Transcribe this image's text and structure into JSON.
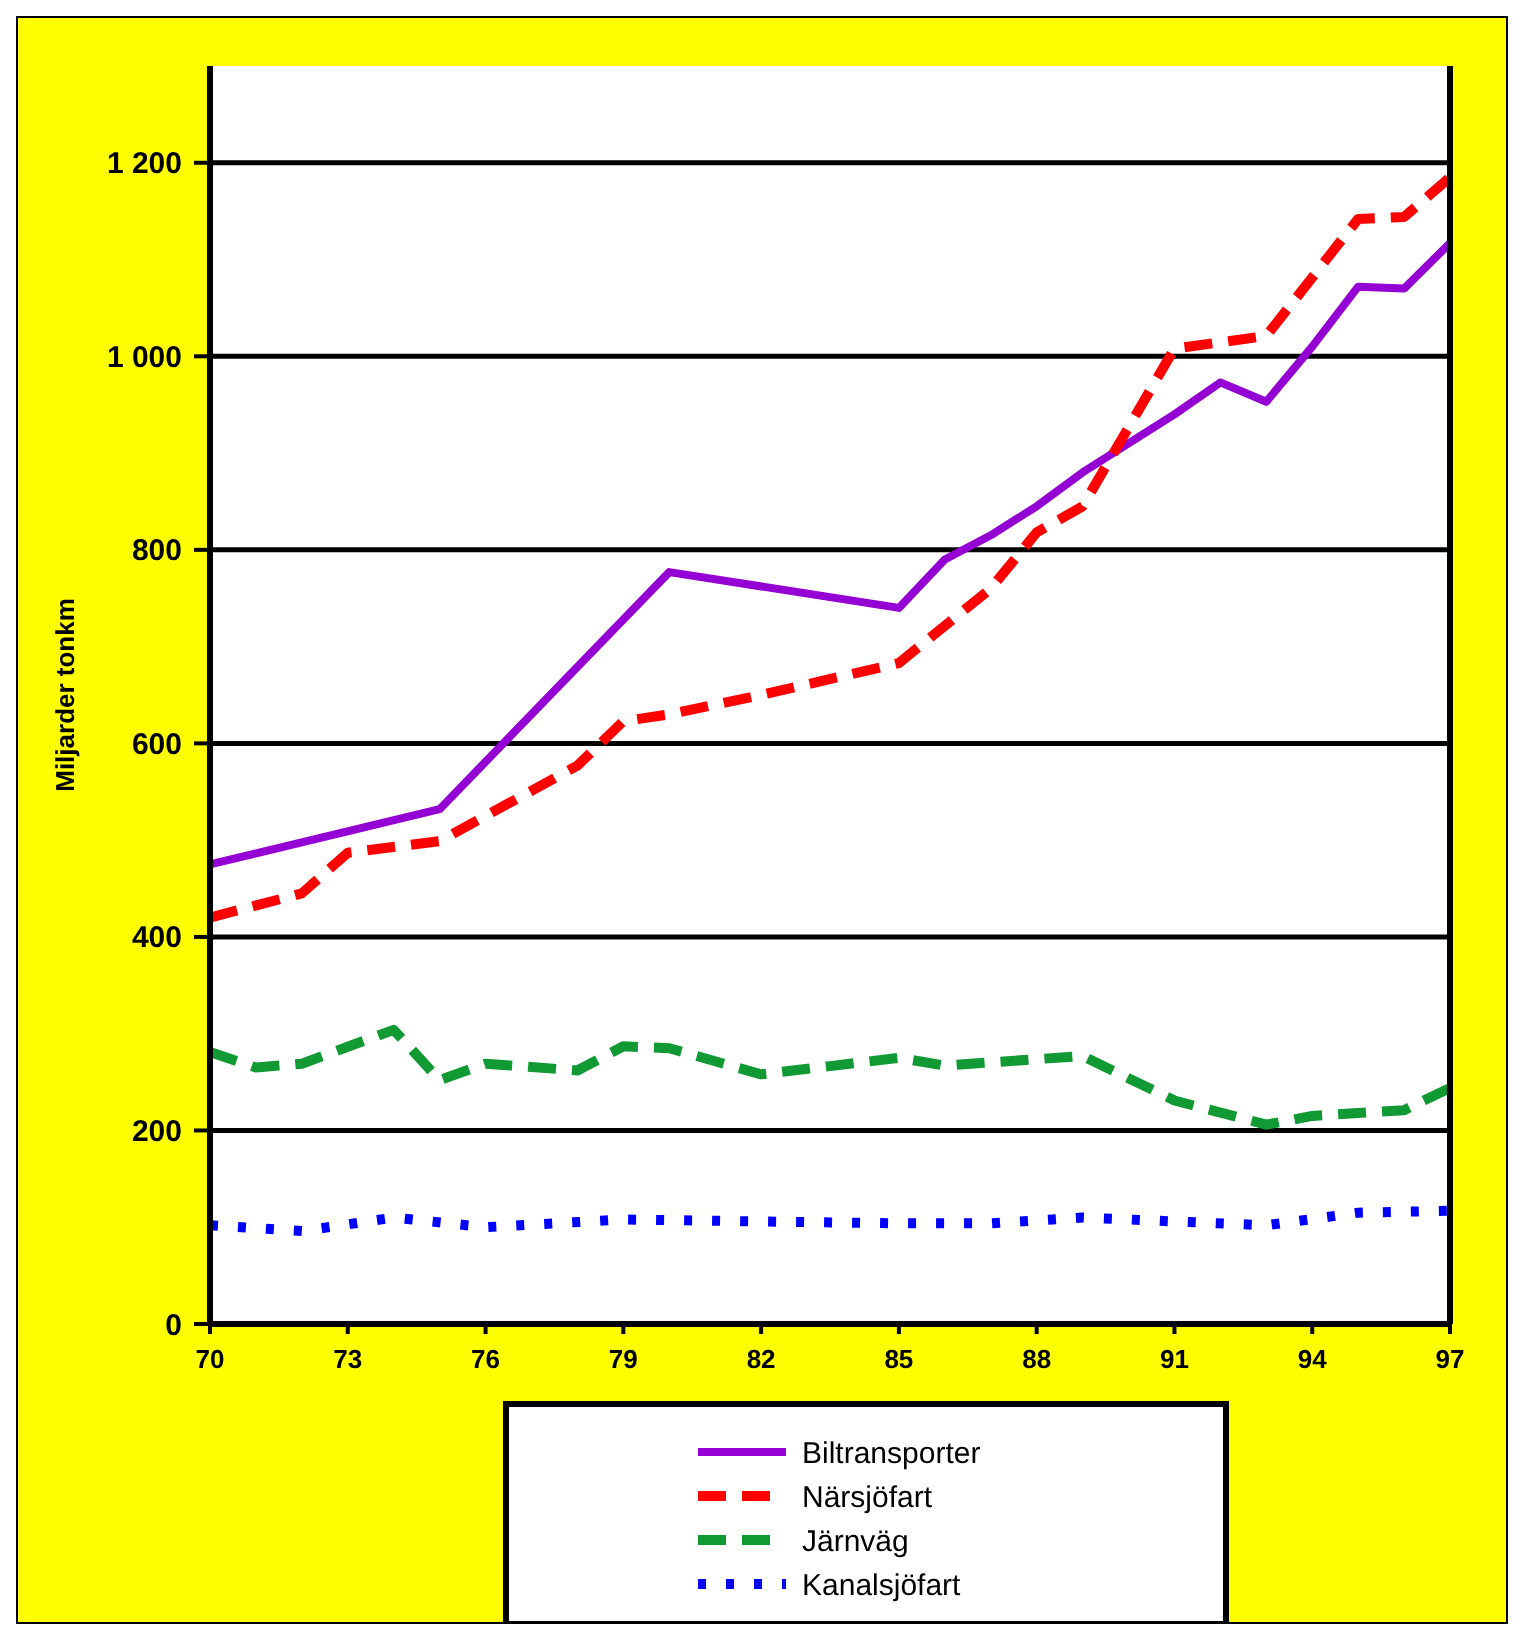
{
  "chart_data": {
    "type": "line",
    "ylabel": "Miljarder tonkm",
    "xlim": [
      70,
      97
    ],
    "xticks": [
      70,
      73,
      76,
      79,
      82,
      85,
      88,
      91,
      94,
      97
    ],
    "ylim": [
      0,
      1300
    ],
    "yticks": [
      0,
      200,
      400,
      600,
      800,
      {
        "value": 1000,
        "label": "1 000"
      },
      {
        "value": 1200,
        "label": "1 200"
      }
    ],
    "grid": "y",
    "legend": "bottom",
    "series": [
      {
        "name": "Biltransporter",
        "color": "#9400d3",
        "line_style": "solid",
        "x": [
          70,
          75,
          80,
          85,
          86,
          87,
          88,
          89,
          90,
          91,
          92,
          93,
          94,
          95,
          96,
          97
        ],
        "values": [
          475,
          532,
          777,
          740,
          790,
          815,
          845,
          880,
          910,
          940,
          973,
          953,
          1010,
          1072,
          1070,
          1117
        ]
      },
      {
        "name": "Närsjöfart",
        "color": "#ff0000",
        "line_style": "dashed",
        "x": [
          70,
          72,
          73,
          75,
          78,
          79,
          80,
          82,
          85,
          87,
          88,
          89,
          91,
          93,
          95,
          96,
          97
        ],
        "values": [
          420,
          445,
          487,
          499,
          577,
          623,
          630,
          650,
          683,
          760,
          818,
          845,
          1008,
          1021,
          1142,
          1144,
          1185
        ]
      },
      {
        "name": "Järnväg",
        "color": "#119933",
        "line_style": "dashed",
        "x": [
          70,
          71,
          72,
          74,
          75,
          76,
          78,
          79,
          80,
          82,
          85,
          86,
          89,
          91,
          93,
          94,
          96,
          97
        ],
        "values": [
          281,
          265,
          269,
          304,
          252,
          269,
          262,
          287,
          285,
          258,
          275,
          267,
          277,
          231,
          206,
          215,
          221,
          244
        ]
      },
      {
        "name": "Kanalsjöfart",
        "color": "#0000ff",
        "line_style": "dotted",
        "x": [
          70,
          72,
          74,
          76,
          79,
          85,
          87,
          89,
          91,
          93,
          95,
          97
        ],
        "values": [
          102,
          96,
          110,
          100,
          108,
          104,
          104,
          110,
          106,
          102,
          115,
          117
        ]
      }
    ]
  }
}
